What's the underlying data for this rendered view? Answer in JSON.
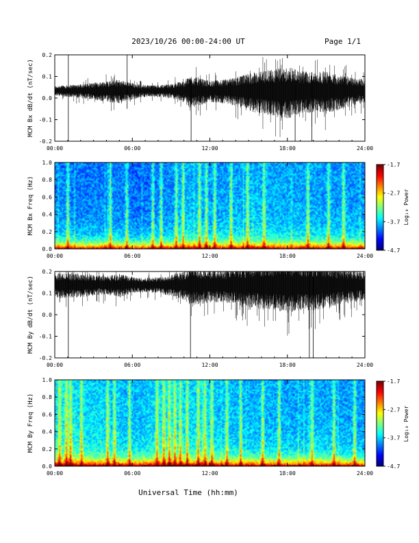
{
  "header": {
    "title": "2023/10/26  00:00-24:00 UT",
    "page": "Page 1/1"
  },
  "chart_data": [
    {
      "type": "line",
      "ylabel": "MCM Bx dB/dt (nT/sec)",
      "xlim_hours": [
        0,
        24
      ],
      "ylim": [
        -0.2,
        0.2
      ],
      "yticks": [
        "-0.2",
        "-0.1",
        "0.0",
        "0.1",
        "0.2"
      ],
      "xticks": [
        "00:00",
        "06:00",
        "12:00",
        "18:00",
        "24:00"
      ],
      "baseline": 0.035,
      "envelope": {
        "hours": [
          0,
          1,
          2,
          3,
          4,
          5,
          6,
          7,
          8,
          9,
          10,
          10.5,
          11,
          12,
          13,
          14,
          15,
          16,
          17,
          18,
          19,
          20,
          21,
          22,
          23,
          24
        ],
        "amplitude": [
          0.02,
          0.025,
          0.03,
          0.035,
          0.045,
          0.05,
          0.035,
          0.025,
          0.025,
          0.03,
          0.045,
          0.07,
          0.06,
          0.045,
          0.05,
          0.06,
          0.08,
          0.09,
          0.1,
          0.11,
          0.09,
          0.085,
          0.09,
          0.075,
          0.06,
          0.05
        ]
      },
      "spikes": [
        {
          "hour": 1.05,
          "min": -0.2,
          "max": 0.2
        },
        {
          "hour": 5.6,
          "min": -0.05,
          "max": 0.2
        },
        {
          "hour": 10.55,
          "min": -0.2,
          "max": 0.08
        },
        {
          "hour": 18.6,
          "min": -0.2,
          "max": 0.06
        },
        {
          "hour": 19.9,
          "min": -0.2,
          "max": 0.12
        }
      ]
    },
    {
      "type": "heatmap",
      "ylabel": "MCM Bx Freq (Hz)",
      "xlim_hours": [
        0,
        24
      ],
      "ylim": [
        0,
        1.0
      ],
      "yticks": [
        "0.0",
        "0.2",
        "0.4",
        "0.6",
        "0.8",
        "1.0"
      ],
      "xticks": [
        "00:00",
        "06:00",
        "12:00",
        "18:00",
        "24:00"
      ],
      "colorbar": {
        "label": "Log₁₀ Power",
        "ticks": [
          "-1.7",
          "-2.7",
          "-3.7",
          "-4.7"
        ],
        "range": [
          -4.7,
          -1.7
        ]
      },
      "activity_hours": [
        0,
        2,
        4,
        6,
        8,
        10,
        11,
        12,
        14,
        16,
        18,
        20,
        22,
        24
      ],
      "activity": [
        0.45,
        0.4,
        0.45,
        0.35,
        0.4,
        0.55,
        0.6,
        0.5,
        0.55,
        0.6,
        0.55,
        0.55,
        0.5,
        0.5
      ],
      "streaks": [
        1.0,
        4.3,
        5.5,
        7.6,
        8.2,
        9.4,
        9.9,
        11.2,
        11.7,
        12.4,
        13.6,
        14.9,
        16.2,
        19.6,
        21.2,
        22.4
      ]
    },
    {
      "type": "line",
      "ylabel": "MCM By dB/dt (nT/sec)",
      "xlim_hours": [
        0,
        24
      ],
      "ylim": [
        -0.2,
        0.2
      ],
      "yticks": [
        "-0.2",
        "-0.1",
        "0.0",
        "0.1",
        "0.2"
      ],
      "xticks": [
        "00:00",
        "06:00",
        "12:00",
        "18:00",
        "24:00"
      ],
      "baseline": 0.14,
      "envelope": {
        "hours": [
          0,
          1,
          2,
          3,
          4,
          5,
          6,
          7,
          8,
          9,
          10,
          10.5,
          11,
          12,
          13,
          14,
          15,
          16,
          17,
          18,
          19,
          20,
          21,
          22,
          23,
          24
        ],
        "amplitude": [
          0.05,
          0.055,
          0.05,
          0.045,
          0.04,
          0.05,
          0.035,
          0.03,
          0.035,
          0.045,
          0.06,
          0.08,
          0.08,
          0.07,
          0.07,
          0.08,
          0.09,
          0.1,
          0.1,
          0.11,
          0.1,
          0.1,
          0.09,
          0.08,
          0.07,
          0.06
        ]
      },
      "spikes": [
        {
          "hour": 1.05,
          "min": -0.2,
          "max": 0.2
        },
        {
          "hour": 10.5,
          "min": -0.2,
          "max": 0.2
        },
        {
          "hour": 19.7,
          "min": -0.2,
          "max": 0.2
        },
        {
          "hour": 20.0,
          "min": -0.2,
          "max": 0.18
        }
      ]
    },
    {
      "type": "heatmap",
      "ylabel": "MCM By Freq (Hz)",
      "xlim_hours": [
        0,
        24
      ],
      "ylim": [
        0,
        1.0
      ],
      "yticks": [
        "0.0",
        "0.2",
        "0.4",
        "0.6",
        "0.8",
        "1.0"
      ],
      "xticks": [
        "00:00",
        "06:00",
        "12:00",
        "18:00",
        "24:00"
      ],
      "colorbar": {
        "label": "Log₁₀ Power",
        "ticks": [
          "-1.7",
          "-2.7",
          "-3.7",
          "-4.7"
        ],
        "range": [
          -4.7,
          -1.7
        ]
      },
      "activity_hours": [
        0,
        1,
        2,
        4,
        6,
        8,
        9,
        10,
        11,
        12,
        14,
        16,
        18,
        20,
        22,
        24
      ],
      "activity": [
        0.8,
        0.85,
        0.75,
        0.7,
        0.6,
        0.75,
        0.8,
        0.7,
        0.75,
        0.7,
        0.6,
        0.6,
        0.55,
        0.6,
        0.55,
        0.5
      ],
      "streaks": [
        0.3,
        0.8,
        1.2,
        2.0,
        4.0,
        4.6,
        5.8,
        7.9,
        8.4,
        8.8,
        9.3,
        9.7,
        10.2,
        11.1,
        11.6,
        12.2,
        13.3,
        14.4,
        16.1,
        17.4,
        19.9,
        21.6,
        23.2
      ]
    }
  ],
  "xlabel": "Universal Time (hh:mm)",
  "colors": {
    "axis": "#000000",
    "trace": "#000000",
    "background": "#ffffff"
  }
}
